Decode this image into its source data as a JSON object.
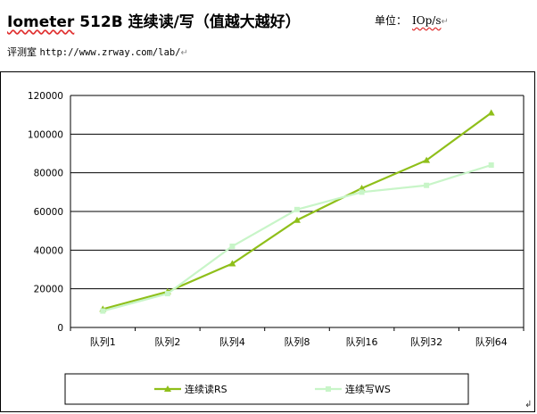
{
  "doc": {
    "title_prefix": "Iometer",
    "title_rest": " 512B 连续读/写（值越大越好）",
    "unit_label": "单位：",
    "unit_value": "IOp/s",
    "source_label": "评测室",
    "source_url": "http://www.zrway.com/lab/",
    "para_mark": "↵"
  },
  "colors": {
    "rs": "#8fbf1a",
    "ws": "#c8f5c8",
    "grid": "#000000",
    "axis_text": "#000000"
  },
  "chart_data": {
    "type": "line",
    "categories": [
      "队列1",
      "队列2",
      "队列4",
      "队列8",
      "队列16",
      "队列32",
      "队列64"
    ],
    "series": [
      {
        "name": "连续读RS",
        "values": [
          9500,
          18500,
          33000,
          55500,
          72000,
          86500,
          111000
        ],
        "marker": "triangle"
      },
      {
        "name": "连续写WS",
        "values": [
          8500,
          17500,
          42000,
          61000,
          70000,
          73500,
          84000
        ],
        "marker": "square"
      }
    ],
    "ylim": [
      0,
      120000
    ],
    "yticks": [
      0,
      20000,
      40000,
      60000,
      80000,
      100000,
      120000
    ],
    "grid": true,
    "legend_position": "bottom"
  }
}
